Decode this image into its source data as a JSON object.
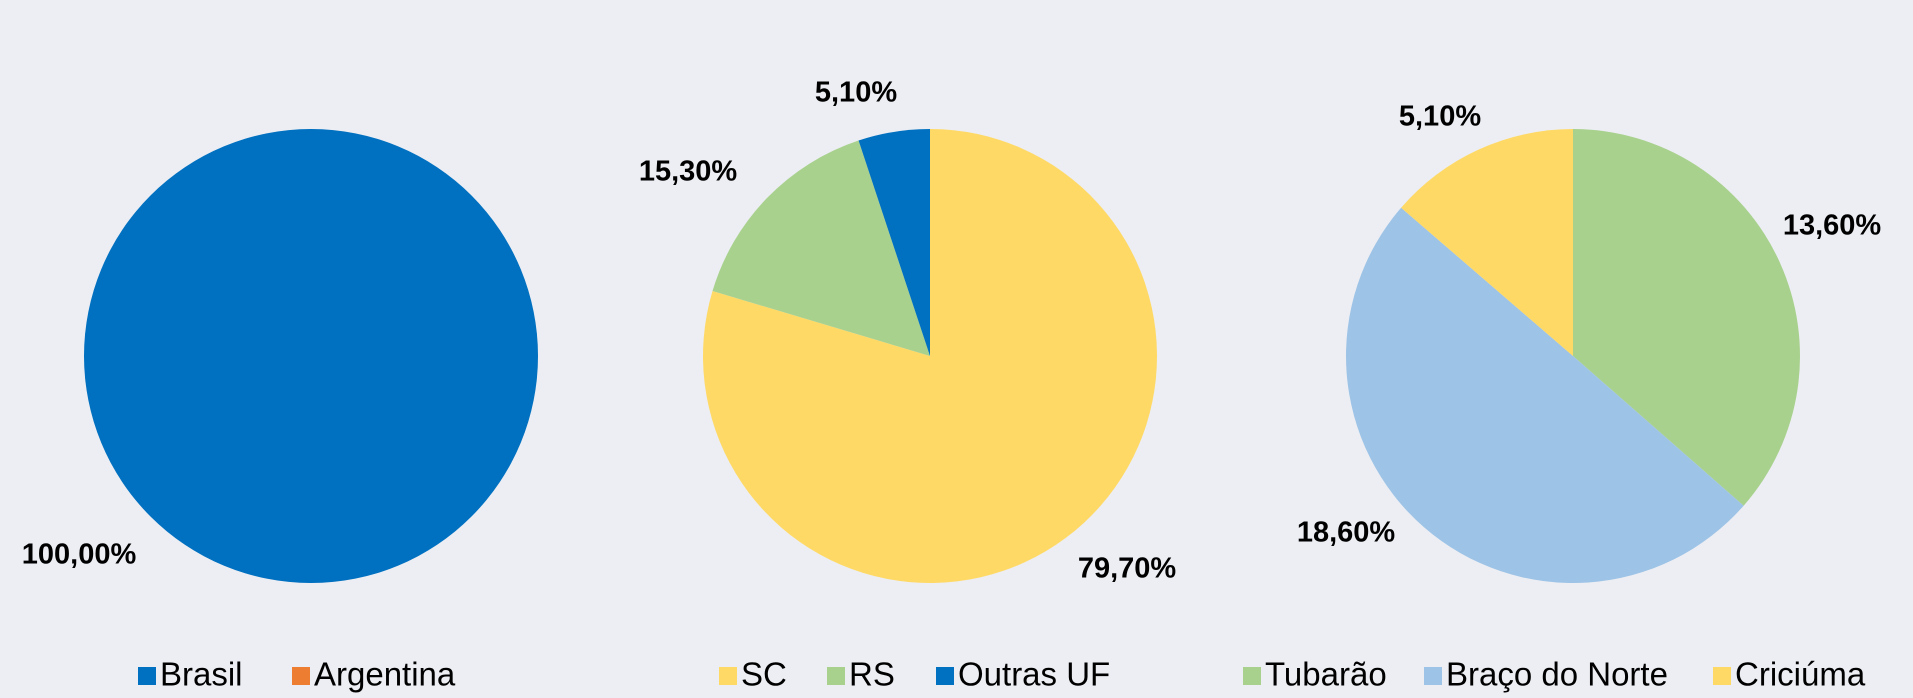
{
  "chart_data": [
    {
      "type": "pie",
      "categories": [
        "Brasil",
        "Argentina"
      ],
      "values": [
        100,
        0
      ],
      "value_labels": [
        "100,00%",
        null
      ],
      "colors": [
        "#0070c0",
        "#ed7d31"
      ]
    },
    {
      "type": "pie",
      "categories": [
        "SC",
        "RS",
        "Outras UF"
      ],
      "values": [
        79.7,
        15.3,
        5.1
      ],
      "value_labels": [
        "79,70%",
        "15,30%",
        "5,10%"
      ],
      "colors": [
        "#ffd966",
        "#a9d18e",
        "#0070c0"
      ]
    },
    {
      "type": "pie",
      "categories": [
        "Tubarão",
        "Braço do Norte",
        "Criciúma"
      ],
      "values": [
        13.6,
        18.6,
        5.1
      ],
      "value_labels": [
        "13,60%",
        "18,60%",
        "5,10%"
      ],
      "colors": [
        "#a9d18e",
        "#9dc3e6",
        "#ffd966"
      ]
    }
  ]
}
